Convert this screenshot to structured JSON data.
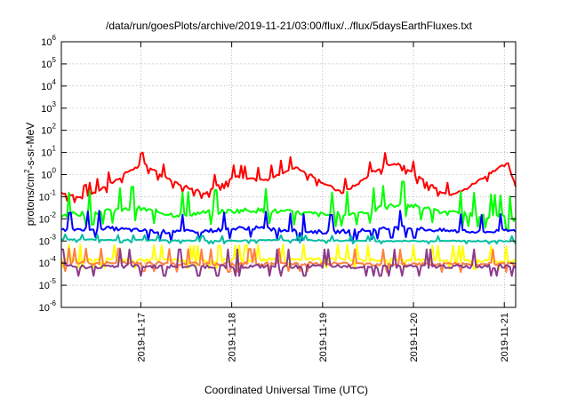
{
  "chart_data": {
    "type": "line",
    "title": "/data/run/goesPlots/archive/2019-11-21/03:00/flux/../flux/5daysEarthFluxes.txt",
    "xlabel": "Coordinated Universal Time (UTC)",
    "ylabel_base": "protons/cm",
    "ylabel_exp": "2",
    "ylabel_rest": "-s-sr-MeV",
    "yscale": "log",
    "ylim": [
      1e-06,
      1000000.0
    ],
    "xlim": [
      "2019-11-16 03:00",
      "2019-11-21 03:00"
    ],
    "grid": true,
    "y_ticks": [
      {
        "base": "10",
        "exp": "-6",
        "v": -6
      },
      {
        "base": "10",
        "exp": "-5",
        "v": -5
      },
      {
        "base": "10",
        "exp": "-4",
        "v": -4
      },
      {
        "base": "10",
        "exp": "-3",
        "v": -3
      },
      {
        "base": "10",
        "exp": "-2",
        "v": -2
      },
      {
        "base": "10",
        "exp": "-1",
        "v": -1
      },
      {
        "base": "10",
        "exp": "0",
        "v": 0
      },
      {
        "base": "10",
        "exp": "1",
        "v": 1
      },
      {
        "base": "10",
        "exp": "2",
        "v": 2
      },
      {
        "base": "10",
        "exp": "3",
        "v": 3
      },
      {
        "base": "10",
        "exp": "4",
        "v": 4
      },
      {
        "base": "10",
        "exp": "5",
        "v": 5
      },
      {
        "base": "10",
        "exp": "6",
        "v": 6
      }
    ],
    "x_ticks": [
      {
        "label": "2019-11-17",
        "t": 21
      },
      {
        "label": "2019-11-18",
        "t": 45
      },
      {
        "label": "2019-11-19",
        "t": 69
      },
      {
        "label": "2019-11-20",
        "t": 93
      },
      {
        "label": "2019-11-21",
        "t": 117
      }
    ],
    "series": [
      {
        "color": "#ff0000",
        "x": [
          0,
          6,
          10,
          14,
          18,
          22,
          26,
          30,
          34,
          38,
          42,
          46,
          50,
          54,
          58,
          62,
          66,
          70,
          74,
          78,
          82,
          86,
          90,
          94,
          98,
          102,
          106,
          110,
          114,
          118,
          120
        ],
        "values": [
          0.15,
          0.09,
          0.2,
          0.5,
          1.5,
          3.0,
          1.0,
          0.45,
          0.25,
          0.15,
          0.4,
          0.8,
          0.6,
          0.55,
          1.2,
          2.2,
          0.9,
          0.35,
          0.15,
          0.35,
          1.2,
          3.0,
          3.0,
          0.8,
          0.3,
          0.12,
          0.18,
          0.5,
          1.5,
          3.0,
          0.3
        ]
      },
      {
        "color": "#00ff00",
        "x": [
          0,
          10,
          20,
          30,
          40,
          50,
          60,
          70,
          80,
          90,
          100,
          110,
          120
        ],
        "values": [
          0.015,
          0.02,
          0.03,
          0.015,
          0.02,
          0.025,
          0.02,
          0.015,
          0.02,
          0.05,
          0.02,
          0.015,
          0.01
        ]
      },
      {
        "color": "#0000ff",
        "x": [
          0,
          10,
          20,
          30,
          40,
          50,
          60,
          70,
          80,
          90,
          100,
          110,
          120
        ],
        "values": [
          0.003,
          0.004,
          0.003,
          0.0025,
          0.003,
          0.004,
          0.003,
          0.0025,
          0.003,
          0.004,
          0.003,
          0.0025,
          0.003
        ]
      },
      {
        "color": "#00bfa0",
        "x": [
          0,
          20,
          40,
          60,
          80,
          100,
          120
        ],
        "values": [
          0.0012,
          0.0011,
          0.001,
          0.0011,
          0.001,
          0.001,
          0.001
        ]
      },
      {
        "color": "#ffff00",
        "x": [
          0,
          20,
          40,
          60,
          80,
          100,
          120
        ],
        "values": [
          0.00015,
          0.00014,
          0.00013,
          0.00015,
          0.00014,
          0.00013,
          0.00012
        ]
      },
      {
        "color": "#ff8040",
        "x": [
          0,
          20,
          40,
          60,
          80,
          100,
          120
        ],
        "values": [
          0.0001,
          0.0001,
          9e-05,
          0.0001,
          9e-05,
          9e-05,
          9e-05
        ]
      },
      {
        "color": "#8b3a8b",
        "x": [
          0,
          20,
          40,
          60,
          80,
          100,
          120
        ],
        "values": [
          7e-05,
          7e-05,
          7e-05,
          7e-05,
          7e-05,
          7e-05,
          7e-05
        ]
      }
    ]
  }
}
